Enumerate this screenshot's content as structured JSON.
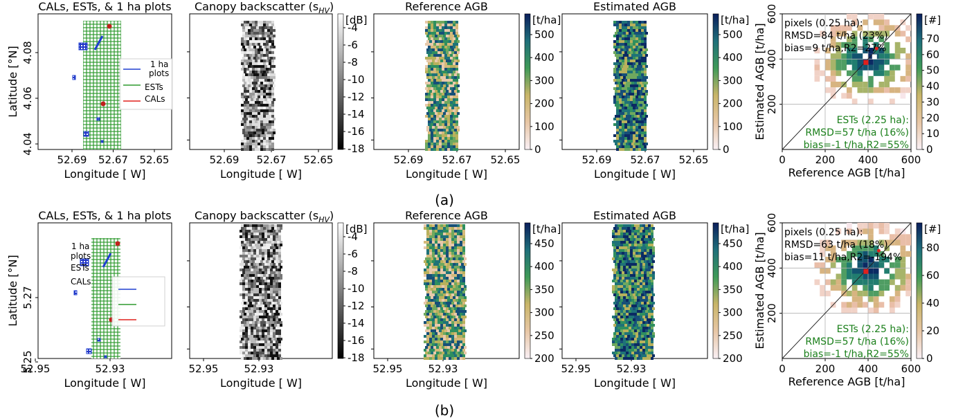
{
  "rows": [
    {
      "panel_label": "(a)",
      "panels": {
        "map": {
          "title": "CALs, ESTs, & 1 ha plots",
          "xlabel": "Longitude [ W]",
          "ylabel": "Latitude [°N]",
          "xticks": [
            "52.69",
            "52.67",
            "52.65"
          ],
          "yticks": [
            "4.08",
            "4.06",
            "4.04"
          ],
          "legend": [
            "1 ha plots",
            "ESTs",
            "CALs"
          ],
          "legend_colors": [
            "#1f3fd0",
            "#2e9a2e",
            "#e0201c"
          ]
        },
        "backscatter": {
          "title": "Canopy backscatter (s",
          "title_sub": "HV",
          "title_end": ")",
          "xlabel": "Longitude [ W]",
          "xticks": [
            "52.69",
            "52.67",
            "52.65"
          ],
          "colorbar_unit": "[dB]",
          "colorbar_ticks": [
            "-4",
            "-6",
            "-8",
            "-10",
            "-12",
            "-14",
            "-16",
            "-18"
          ]
        },
        "reference": {
          "title": "Reference AGB",
          "xlabel": "Longitude [ W]",
          "xticks": [
            "52.69",
            "52.67",
            "52.65"
          ],
          "colorbar_unit": "[t/ha]",
          "colorbar_ticks": [
            "500",
            "400",
            "300",
            "200",
            "100",
            "0"
          ]
        },
        "estimated": {
          "title": "Estimated AGB",
          "xlabel": "Longitude [ W]",
          "xticks": [
            "52.69",
            "52.67",
            "52.65"
          ],
          "colorbar_unit": "[t/ha]",
          "colorbar_ticks": [
            "500",
            "400",
            "300",
            "200",
            "100",
            "0"
          ]
        },
        "scatter": {
          "xlabel": "Reference AGB [t/ha]",
          "ylabel": "Estimated AGB [t/ha]",
          "xticks": [
            "0",
            "200",
            "400",
            "600"
          ],
          "yticks": [
            "200",
            "400",
            "600"
          ],
          "colorbar_unit": "[#]",
          "colorbar_ticks": [
            "70",
            "60",
            "50",
            "40",
            "30",
            "20",
            "10",
            "0"
          ],
          "stats_black": [
            "pixels (0.25 ha):",
            "RMSD=84 t/ha (23%)",
            "bias=9 t/ha,R2=27%"
          ],
          "stats_green": [
            "ESTs (2.25 ha):",
            "RMSD=57 t/ha (16%)",
            "bias=-1 t/ha,R2=55%"
          ]
        }
      }
    },
    {
      "panel_label": "(b)",
      "panels": {
        "map": {
          "title": "CALs, ESTs, & 1 ha plots",
          "xlabel": "Longitude [ W]",
          "ylabel": "Latitude [°N]",
          "xticks": [
            "52.95",
            "52.93"
          ],
          "yticks": [
            "5.27",
            "5.25"
          ],
          "legend": [
            "1 ha plots",
            "ESTs",
            "CALs"
          ],
          "legend_colors": [
            "#1f3fd0",
            "#2e9a2e",
            "#e0201c"
          ]
        },
        "backscatter": {
          "title": "Canopy backscatter (s",
          "title_sub": "HV",
          "title_end": ")",
          "xlabel": "Longitude [ W]",
          "xticks": [
            "52.95",
            "52.93"
          ],
          "colorbar_unit": "[dB]",
          "colorbar_ticks": [
            "-4",
            "-6",
            "-8",
            "-10",
            "-12",
            "-14",
            "-16",
            "-18"
          ]
        },
        "reference": {
          "title": "Reference AGB",
          "xlabel": "Longitude [ W]",
          "xticks": [
            "52.95",
            "52.93"
          ],
          "colorbar_unit": "[t/ha]",
          "colorbar_ticks": [
            "450",
            "400",
            "350",
            "300",
            "250",
            "200"
          ]
        },
        "estimated": {
          "title": "Estimated AGB",
          "xlabel": "Longitude [ W]",
          "xticks": [
            "52.95",
            "52.93"
          ],
          "colorbar_unit": "[t/ha]",
          "colorbar_ticks": [
            "450",
            "400",
            "350",
            "300",
            "250",
            "200"
          ]
        },
        "scatter": {
          "xlabel": "Reference AGB [t/ha]",
          "ylabel": "Estimated AGB [t/ha]",
          "xticks": [
            "0",
            "200",
            "400",
            "600"
          ],
          "yticks": [
            "200",
            "400",
            "600"
          ],
          "colorbar_unit": "[#]",
          "colorbar_ticks": [
            "80",
            "60",
            "40",
            "20",
            "0"
          ],
          "stats_black": [
            "pixels (0.25 ha):",
            "RMSD=63 t/ha (18%)",
            "bias=11 t/ha,R2=-194%"
          ],
          "stats_green": [
            "ESTs (2.25 ha):",
            "RMSD=57 t/ha (16%)",
            "bias=-1 t/ha,R2=55%"
          ]
        }
      }
    }
  ],
  "chart_data": [
    {
      "type": "scatter",
      "panel": "(a)",
      "xlabel": "Reference AGB [t/ha]",
      "ylabel": "Estimated AGB [t/ha]",
      "xlim": [
        0,
        600
      ],
      "ylim": [
        0,
        600
      ],
      "grid": true,
      "note": "2D histogram of pixels with 1:1 line",
      "highlight_points": [
        {
          "x": 390,
          "y": 385
        },
        {
          "x": 430,
          "y": 410
        }
      ],
      "stats": {
        "pixels_rmsd": "84 t/ha (23%)",
        "pixels_bias": "9 t/ha",
        "pixels_r2": "27%",
        "ests_rmsd": "57 t/ha (16%)",
        "ests_bias": "-1 t/ha",
        "ests_r2": "55%"
      }
    },
    {
      "type": "scatter",
      "panel": "(b)",
      "xlabel": "Reference AGB [t/ha]",
      "ylabel": "Estimated AGB [t/ha]",
      "xlim": [
        0,
        600
      ],
      "ylim": [
        0,
        600
      ],
      "grid": true,
      "highlight_points": [
        {
          "x": 390,
          "y": 385
        },
        {
          "x": 440,
          "y": 440
        }
      ],
      "stats": {
        "pixels_rmsd": "63 t/ha (18%)",
        "pixels_bias": "11 t/ha",
        "pixels_r2": "-194%",
        "ests_rmsd": "57 t/ha (16%)",
        "ests_bias": "-1 t/ha",
        "ests_r2": "55%"
      }
    }
  ]
}
